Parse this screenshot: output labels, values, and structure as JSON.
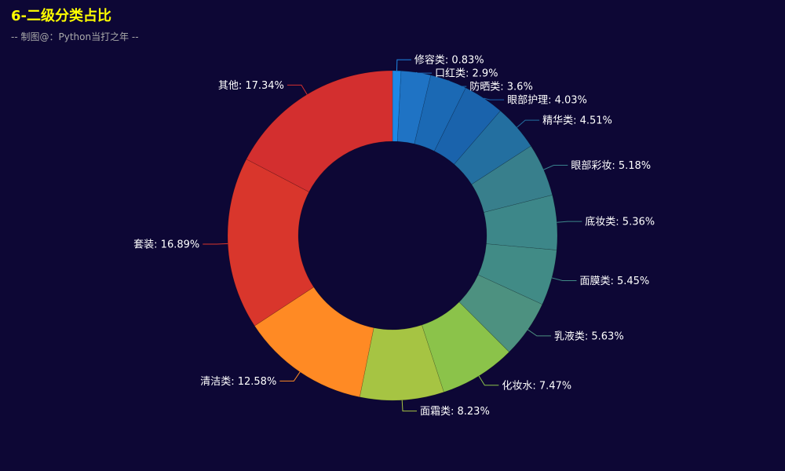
{
  "title": "6-二级分类占比",
  "subtitle": "-- 制图@：Python当打之年 --",
  "chart_data": {
    "type": "pie",
    "variant": "donut",
    "title": "6-二级分类占比",
    "subtitle": "-- 制图@：Python当打之年 --",
    "label_format": "{name}: {value}%",
    "slices": [
      {
        "name": "修容类",
        "value": 0.83,
        "color": "#1e88e5"
      },
      {
        "name": "口红类",
        "value": 2.9,
        "color": "#1f73c4"
      },
      {
        "name": "防晒类",
        "value": 3.6,
        "color": "#1b69b4"
      },
      {
        "name": "眼部护理",
        "value": 4.03,
        "color": "#1a63ac"
      },
      {
        "name": "精华类",
        "value": 4.51,
        "color": "#236fa0"
      },
      {
        "name": "眼部彩妆",
        "value": 5.18,
        "color": "#387f8c"
      },
      {
        "name": "底妆类",
        "value": 5.36,
        "color": "#3d8789"
      },
      {
        "name": "面膜类",
        "value": 5.45,
        "color": "#418b86"
      },
      {
        "name": "乳液类",
        "value": 5.63,
        "color": "#4d9180"
      },
      {
        "name": "化妆水",
        "value": 7.47,
        "color": "#8bc34a"
      },
      {
        "name": "面霜类",
        "value": 8.23,
        "color": "#a6c443"
      },
      {
        "name": "清洁类",
        "value": 12.58,
        "color": "#ff8a24"
      },
      {
        "name": "套装",
        "value": 16.89,
        "color": "#d9362c"
      },
      {
        "name": "其他",
        "value": 17.34,
        "color": "#d32f2f"
      }
    ]
  }
}
